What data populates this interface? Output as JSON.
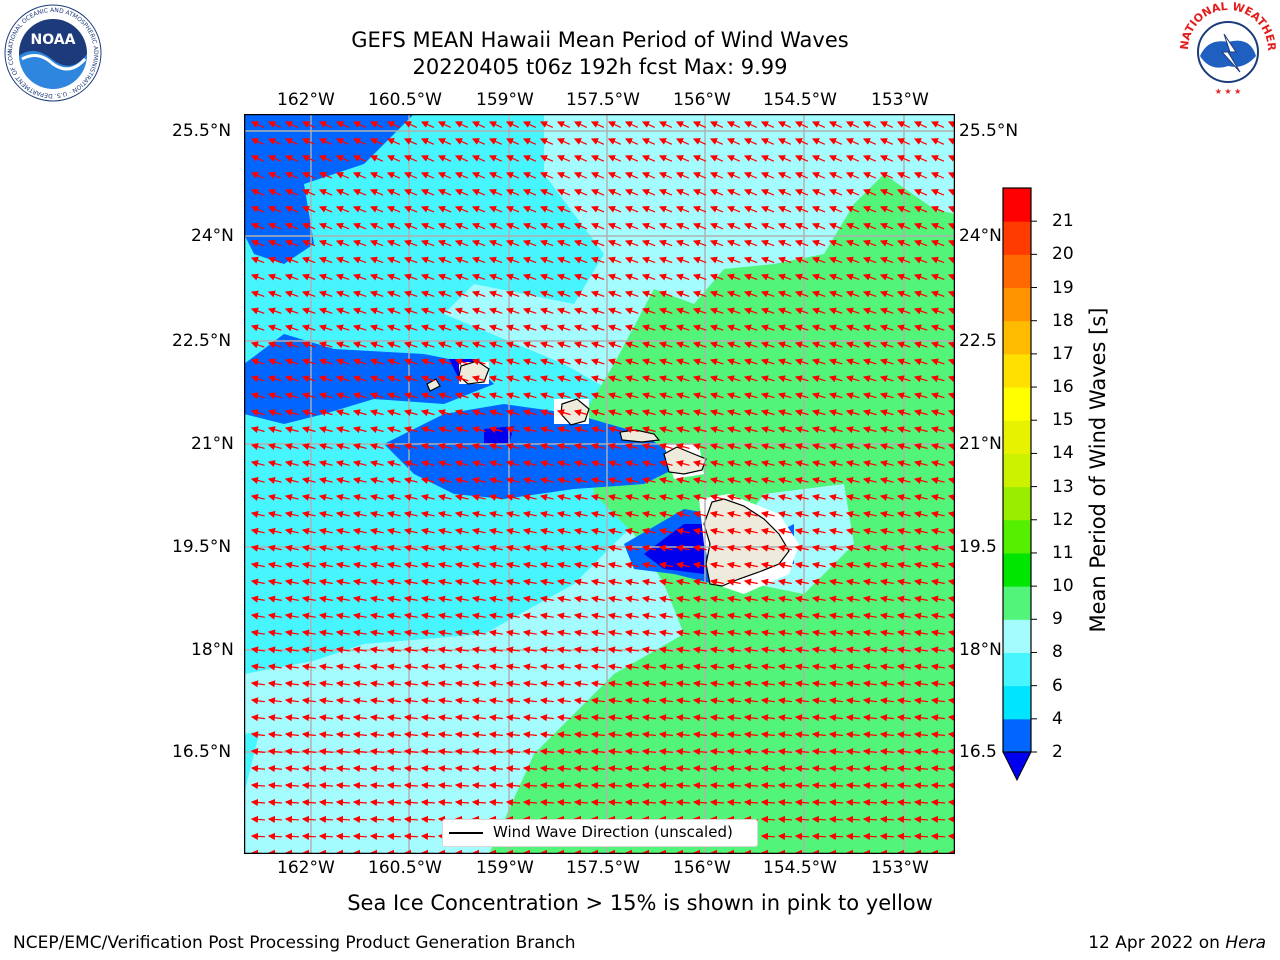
{
  "header": {
    "title_line1": "GEFS MEAN Hawaii Mean Period of Wind Waves",
    "title_line2": "20220405 t06z 192h fcst   Max: 9.99"
  },
  "map": {
    "lon_ticks": [
      "162°W",
      "160.5°W",
      "159°W",
      "157.5°W",
      "156°W",
      "154.5°W",
      "153°W"
    ],
    "lat_ticks": [
      "25.5°N",
      "24°N",
      "22.5°N",
      "21°N",
      "19.5°N",
      "18°N",
      "16.5°N"
    ],
    "lat_ticks_right": [
      "25.5°N",
      "24°N",
      "22.5",
      "21°N",
      "19.5",
      "18°N",
      "16.5"
    ],
    "legend_label": "Wind Wave Direction (unscaled)",
    "vector_color": "#ff0000",
    "land_color": "#efebdc",
    "grid_color": "#b0b0b0"
  },
  "colorbar": {
    "label": "Mean Period of Wind Waves [s]",
    "tick_labels": [
      "2",
      "4",
      "6",
      "8",
      "9",
      "10",
      "11",
      "12",
      "13",
      "14",
      "15",
      "16",
      "17",
      "18",
      "19",
      "20",
      "21"
    ],
    "colors": [
      "#0066ff",
      "#00e5ff",
      "#47f5ff",
      "#a5fcff",
      "#52f57a",
      "#00e600",
      "#55ef00",
      "#99ee00",
      "#ccf200",
      "#e6f200",
      "#ffff00",
      "#ffe000",
      "#ffbb00",
      "#ff9300",
      "#ff6900",
      "#ff3c00",
      "#ff0000"
    ],
    "under_color": "#0000ee"
  },
  "notes": {
    "sea_ice": "Sea Ice Concentration > 15% is shown in pink to yellow"
  },
  "footer": {
    "left": "NCEP/EMC/Verification Post Processing Product Generation Branch",
    "right_prefix": "12 Apr 2022 on ",
    "right_host": "Hera"
  },
  "logos": {
    "noaa_text": "NOAA",
    "noaa_ring": "NATIONAL OCEANIC AND ATMOSPHERIC ADMINISTRATION · U.S. DEPARTMENT OF COMMERCE",
    "nws_ring": "NATIONAL WEATHER SERVICE"
  }
}
